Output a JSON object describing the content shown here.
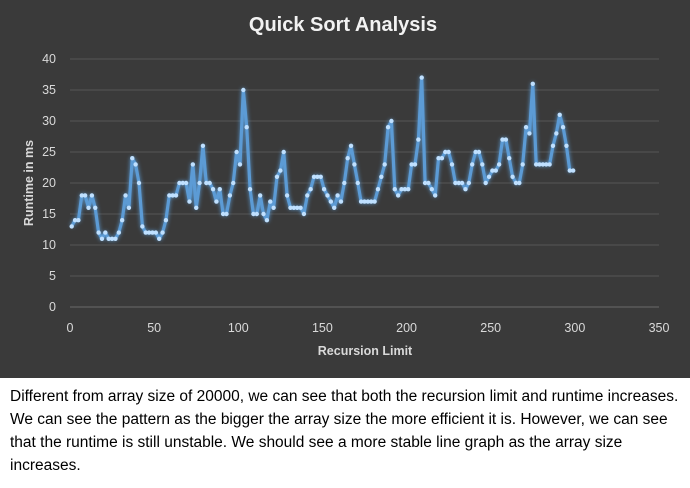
{
  "chart_data": {
    "type": "line",
    "title": "Quick Sort Analysis",
    "xlabel": "Recursion Limit",
    "ylabel": "Runtime in ms",
    "xlim": [
      0,
      350
    ],
    "ylim": [
      0,
      40
    ],
    "xticks": [
      0,
      50,
      100,
      150,
      200,
      250,
      300,
      350
    ],
    "yticks": [
      0,
      5,
      10,
      15,
      20,
      25,
      30,
      35,
      40
    ],
    "grid": "horizontal",
    "legend": "none",
    "line_color": "#5b9bd5",
    "background_color": "#3a3a3a",
    "series": [
      {
        "x": [
          1,
          3,
          5,
          7,
          9,
          11,
          13,
          15,
          17,
          19,
          21,
          23,
          25,
          27,
          29,
          31,
          33,
          35,
          37,
          39,
          41,
          43,
          45,
          47,
          49,
          51,
          53,
          55,
          57,
          59,
          61,
          63,
          65,
          67,
          69,
          71,
          73,
          75,
          77,
          79,
          81,
          83,
          85,
          87,
          89,
          91,
          93,
          95,
          97,
          99,
          101,
          103,
          105,
          107,
          109,
          111,
          113,
          115,
          117,
          119,
          121,
          123,
          125,
          127,
          129,
          131,
          133,
          135,
          137,
          139,
          141,
          143,
          145,
          147,
          149,
          151,
          153,
          155,
          157,
          159,
          161,
          163,
          165,
          167,
          169,
          171,
          173,
          175,
          177,
          179,
          181,
          183,
          185,
          187,
          189,
          191,
          193,
          195,
          197,
          199,
          201,
          203,
          205,
          207,
          209,
          211,
          213,
          215,
          217,
          219,
          221,
          223,
          225,
          227,
          229,
          231,
          233,
          235,
          237,
          239,
          241,
          243,
          245,
          247,
          249,
          251,
          253,
          255,
          257,
          259,
          261,
          263,
          265,
          267,
          269,
          271,
          273,
          275,
          277,
          279,
          281,
          283,
          285,
          287,
          289,
          291,
          293,
          295,
          297,
          299
        ],
        "y": [
          13,
          14,
          14,
          18,
          18,
          16,
          18,
          16,
          12,
          11,
          12,
          11,
          11,
          11,
          12,
          14,
          18,
          16,
          24,
          23,
          20,
          13,
          12,
          12,
          12,
          12,
          11,
          12,
          14,
          18,
          18,
          18,
          20,
          20,
          20,
          17,
          23,
          16,
          20,
          26,
          20,
          20,
          19,
          17,
          19,
          15,
          15,
          18,
          20,
          25,
          23,
          35,
          29,
          19,
          15,
          15,
          18,
          15,
          14,
          17,
          16,
          21,
          22,
          25,
          18,
          16,
          16,
          16,
          16,
          15,
          18,
          19,
          21,
          21,
          21,
          19,
          18,
          17,
          16,
          18,
          17,
          20,
          24,
          26,
          23,
          20,
          17,
          17,
          17,
          17,
          17,
          19,
          21,
          23,
          29,
          30,
          19,
          18,
          19,
          19,
          19,
          23,
          23,
          27,
          37,
          20,
          20,
          19,
          18,
          24,
          24,
          25,
          25,
          23,
          20,
          20,
          20,
          19,
          20,
          23,
          25,
          25,
          23,
          20,
          21,
          22,
          22,
          23,
          27,
          27,
          24,
          21,
          20,
          20,
          23,
          29,
          28,
          36,
          23,
          23,
          23,
          23,
          23,
          26,
          28,
          31,
          29,
          26,
          22,
          22
        ]
      }
    ]
  },
  "caption": {
    "text": "Different from array size of 20000, we can see that both the recursion limit and runtime increases. We can see the pattern as the bigger the array size the more efficient it is. However, we can see that the runtime is still unstable. We should see a more stable line graph as the array size increases."
  }
}
